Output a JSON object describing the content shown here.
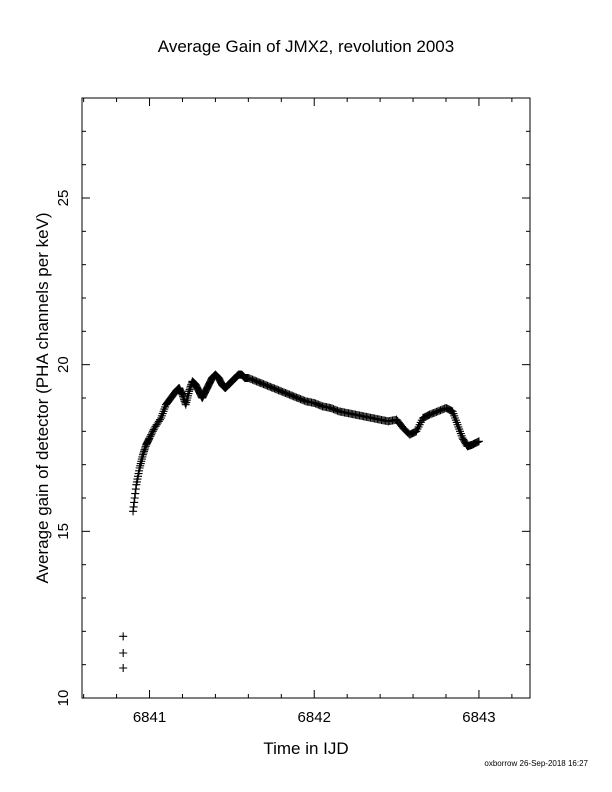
{
  "chart_data": {
    "type": "scatter",
    "title": "Average Gain of JMX2, revolution 2003",
    "xlabel": "Time in IJD",
    "ylabel": "Average gain of detector (PHA channels per keV)",
    "xlim": [
      6840.59,
      6843.31
    ],
    "ylim": [
      10,
      28
    ],
    "x_ticks": [
      "6841",
      "6842",
      "6843"
    ],
    "y_ticks": [
      "10",
      "15",
      "20",
      "25"
    ],
    "marker": "+",
    "grid": false,
    "legend": "none",
    "series": [
      {
        "x": [
          6840.84,
          6840.84,
          6840.84
        ],
        "y": [
          11.85,
          11.35,
          10.9
        ]
      },
      {
        "x": [
          6840.9,
          6840.92,
          6840.94,
          6840.96,
          6840.98,
          6841.0,
          6841.03,
          6841.07,
          6841.1,
          6841.13,
          6841.16,
          6841.18,
          6841.2,
          6841.22,
          6841.24,
          6841.26,
          6841.28,
          6841.3,
          6841.32,
          6841.34,
          6841.36,
          6841.38,
          6841.4,
          6841.42,
          6841.44,
          6841.46,
          6841.48,
          6841.5,
          6841.52,
          6841.54,
          6841.56,
          6841.58,
          6841.6,
          6841.65,
          6841.7,
          6841.75,
          6841.8,
          6841.85,
          6841.9,
          6841.95,
          6842.0,
          6842.05,
          6842.1,
          6842.15,
          6842.2,
          6842.25,
          6842.3,
          6842.35,
          6842.4,
          6842.45,
          6842.5,
          6842.54,
          6842.58,
          6842.62,
          6842.66,
          6842.7,
          6842.75,
          6842.8,
          6842.84,
          6842.87,
          6842.9,
          6842.93,
          6842.96,
          6843.0
        ],
        "y": [
          15.6,
          16.4,
          16.9,
          17.3,
          17.6,
          17.8,
          18.1,
          18.4,
          18.8,
          19.0,
          19.2,
          19.3,
          19.1,
          18.8,
          19.2,
          19.5,
          19.4,
          19.2,
          19.0,
          19.2,
          19.4,
          19.6,
          19.7,
          19.6,
          19.4,
          19.3,
          19.4,
          19.5,
          19.6,
          19.7,
          19.7,
          19.6,
          19.6,
          19.5,
          19.4,
          19.3,
          19.2,
          19.1,
          19.0,
          18.9,
          18.85,
          18.75,
          18.7,
          18.6,
          18.55,
          18.5,
          18.45,
          18.4,
          18.35,
          18.3,
          18.35,
          18.1,
          17.9,
          18.0,
          18.4,
          18.5,
          18.6,
          18.7,
          18.6,
          18.2,
          17.8,
          17.55,
          17.6,
          17.7
        ]
      }
    ]
  },
  "footer": {
    "credit": "oxborrow 26-Sep-2018 16:27"
  }
}
